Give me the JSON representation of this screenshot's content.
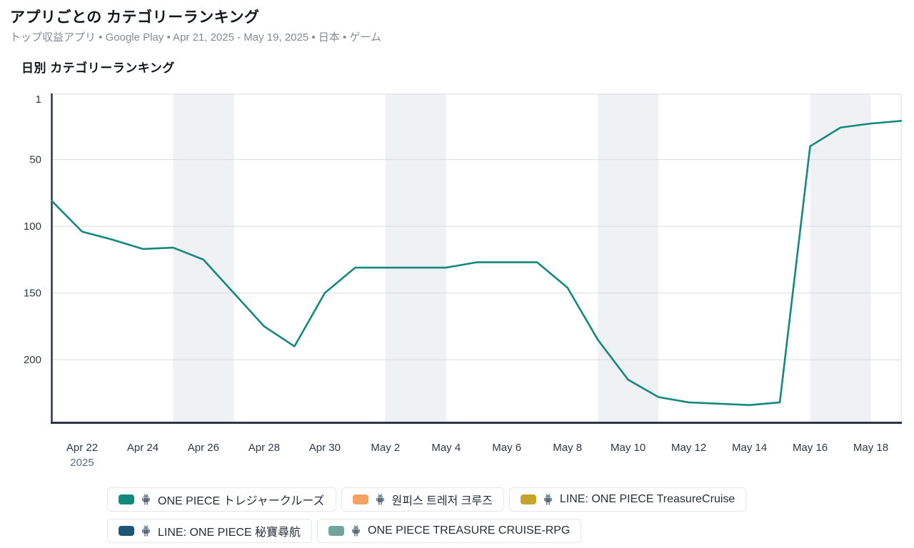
{
  "header": {
    "title": "アプリごとの カテゴリーランキング",
    "subtitle": "トップ収益アプリ • Google Play • Apr 21, 2025 - May 19, 2025 • 日本 • ゲーム"
  },
  "section": {
    "title": "日別 カテゴリーランキング"
  },
  "chart_data": {
    "type": "line",
    "title": "日別 カテゴリーランキング",
    "y_axis_inverted": true,
    "grid": true,
    "y_ticks": [
      1,
      50,
      100,
      150,
      200
    ],
    "y_range": [
      1,
      247
    ],
    "x": [
      "Apr 21",
      "Apr 22",
      "Apr 23",
      "Apr 24",
      "Apr 25",
      "Apr 26",
      "Apr 27",
      "Apr 28",
      "Apr 29",
      "Apr 30",
      "May 1",
      "May 2",
      "May 3",
      "May 4",
      "May 5",
      "May 6",
      "May 7",
      "May 8",
      "May 9",
      "May 10",
      "May 11",
      "May 12",
      "May 13",
      "May 14",
      "May 15",
      "May 16",
      "May 17",
      "May 18",
      "May 19"
    ],
    "x_tick_labels": [
      "Apr 22",
      "Apr 24",
      "Apr 26",
      "Apr 28",
      "Apr 30",
      "May 2",
      "May 4",
      "May 6",
      "May 8",
      "May 10",
      "May 12",
      "May 14",
      "May 16",
      "May 18"
    ],
    "year_label": "2025",
    "weekend_bands": [
      [
        "Apr 25",
        "Apr 27"
      ],
      [
        "May 2",
        "May 4"
      ],
      [
        "May 9",
        "May 11"
      ],
      [
        "May 16",
        "May 18"
      ]
    ],
    "series": [
      {
        "name": "ONE PIECE トレジャークルーズ",
        "color": "#12897e",
        "values": [
          81,
          104,
          110,
          117,
          116,
          125,
          150,
          175,
          190,
          150,
          131,
          131,
          131,
          131,
          127,
          127,
          127,
          146,
          185,
          215,
          228,
          232,
          233,
          234,
          232,
          40,
          26,
          23,
          21
        ]
      }
    ],
    "colors": {
      "axis": "#2b3648",
      "gridline": "#d8dbe0",
      "band": "#eff1f4",
      "tick_text": "#2f3945",
      "year_text": "#5b6d83"
    }
  },
  "legend": {
    "items": [
      {
        "label": "ONE PIECE トレジャークルーズ",
        "color": "#12897e",
        "icon": "android-icon"
      },
      {
        "label": "원피스 트레저 크루즈",
        "color": "#f4a261",
        "icon": "android-icon"
      },
      {
        "label": "LINE: ONE PIECE TreasureCruise",
        "color": "#c8a32b",
        "icon": "android-icon"
      },
      {
        "label": "LINE: ONE PIECE 秘寶尋航",
        "color": "#1d5673",
        "icon": "android-icon"
      },
      {
        "label": "ONE PIECE TREASURE CRUISE-RPG",
        "color": "#72a49c",
        "icon": "android-icon"
      }
    ]
  }
}
